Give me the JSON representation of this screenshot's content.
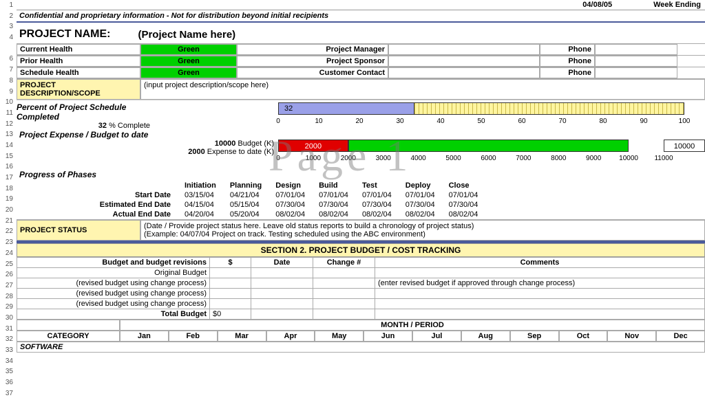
{
  "top": {
    "date": "04/08/05",
    "week_ending": "Week Ending",
    "confidential": "Confidential and proprietary information - Not for distribution beyond initial recipients"
  },
  "project": {
    "name_label": "PROJECT NAME:",
    "name_value": "(Project Name here)"
  },
  "health": {
    "rows": [
      {
        "label": "Current Health",
        "value": "Green",
        "contact_label": "Project Manager",
        "phone_label": "Phone"
      },
      {
        "label": "Prior Health",
        "value": "Green",
        "contact_label": "Project Sponsor",
        "phone_label": "Phone"
      },
      {
        "label": "Schedule Health",
        "value": "Green",
        "contact_label": "Customer Contact",
        "phone_label": "Phone"
      }
    ],
    "pill_bg": "#00d000"
  },
  "scope": {
    "key": "PROJECT DESCRIPTION/SCOPE",
    "val": "(input project description/scope here)"
  },
  "percent": {
    "title": "Percent of Project Schedule Completed",
    "value": 32,
    "suffix": "% Complete",
    "fill_color": "#9aa0e8",
    "track_color": "#fff5a0",
    "xmin": 0,
    "xmax": 100,
    "step": 10
  },
  "budget": {
    "title": "Project Expense / Budget to date",
    "budget_k": 10000,
    "budget_label": "Budget (K)",
    "expense_k": 2000,
    "expense_label": "Expense to date (K)",
    "expense_color": "#e00000",
    "budget_color": "#00d000",
    "endcap": "10000",
    "xmin": 0,
    "xmax": 11000,
    "step": 1000
  },
  "phases": {
    "title": "Progress of Phases",
    "cols": [
      "Initiation",
      "Planning",
      "Design",
      "Build",
      "Test",
      "Deploy",
      "Close"
    ],
    "rows": [
      {
        "key": "Start Date",
        "vals": [
          "03/15/04",
          "04/21/04",
          "07/01/04",
          "07/01/04",
          "07/01/04",
          "07/01/04",
          "07/01/04"
        ]
      },
      {
        "key": "Estimated End Date",
        "vals": [
          "04/15/04",
          "05/15/04",
          "07/30/04",
          "07/30/04",
          "07/30/04",
          "07/30/04",
          "07/30/04"
        ]
      },
      {
        "key": "Actual End Date",
        "vals": [
          "04/20/04",
          "05/20/04",
          "08/02/04",
          "08/02/04",
          "08/02/04",
          "08/02/04",
          "08/02/04"
        ]
      }
    ]
  },
  "status": {
    "key": "PROJECT STATUS",
    "line1": "(Date / Provide project status here.  Leave old status reports to build a chronology of project status)",
    "line2": "(Example:   04/07/04 Project on track.  Testing scheduled using the ABC environment)"
  },
  "section2": {
    "head": "SECTION 2.  PROJECT BUDGET / COST TRACKING",
    "header_label": "Budget and budget revisions",
    "cols": [
      "$",
      "Date",
      "Change #",
      "Comments"
    ],
    "rows": [
      {
        "label": "Original Budget",
        "vals": [
          "",
          "",
          "",
          ""
        ]
      },
      {
        "label": "(revised budget using change process)",
        "vals": [
          "",
          "",
          "",
          "(enter revised budget if approved through change process)"
        ]
      },
      {
        "label": "(revised budget using change process)",
        "vals": [
          "",
          "",
          "",
          ""
        ]
      },
      {
        "label": "(revised budget using change process)",
        "vals": [
          "",
          "",
          "",
          ""
        ]
      },
      {
        "label": "Total Budget",
        "vals": [
          "$0",
          "",
          "",
          ""
        ]
      }
    ],
    "month_head": "MONTH / PERIOD",
    "category_label": "CATEGORY",
    "months": [
      "Jan",
      "Feb",
      "Mar",
      "Apr",
      "May",
      "Jun",
      "Jul",
      "Aug",
      "Sep",
      "Oct",
      "Nov",
      "Dec"
    ],
    "software_label": "SOFTWARE"
  },
  "watermark": "Page 1"
}
